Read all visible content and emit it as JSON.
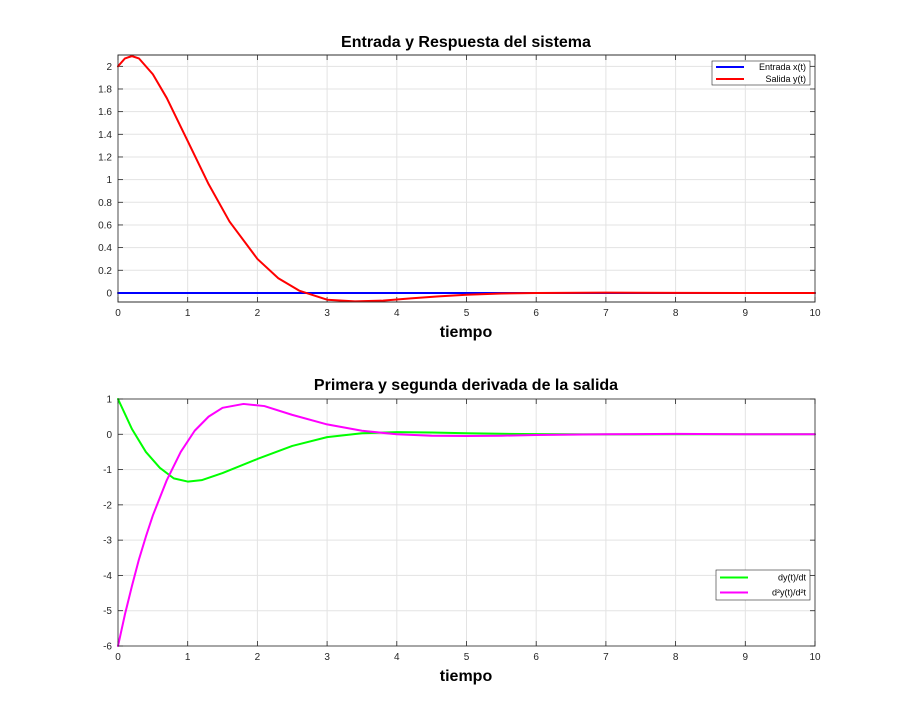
{
  "chart_data": [
    {
      "type": "line",
      "title": "Entrada y Respuesta del sistema",
      "xlabel": "tiempo",
      "ylabel": "",
      "xlim": [
        0,
        10
      ],
      "ylim": [
        -0.08,
        2.1
      ],
      "xticks": [
        "0",
        "1",
        "2",
        "3",
        "4",
        "5",
        "6",
        "7",
        "8",
        "9",
        "10"
      ],
      "yticks": [
        "0",
        "0.2",
        "0.4",
        "0.6",
        "0.8",
        "1",
        "1.2",
        "1.4",
        "1.6",
        "1.8",
        "2"
      ],
      "grid": true,
      "legend_position": "top-right",
      "series": [
        {
          "name": "Entrada x(t)",
          "color": "#0000ff",
          "x": [
            0,
            10
          ],
          "y": [
            0,
            0
          ]
        },
        {
          "name": "Salida y(t)",
          "color": "#ff0000",
          "x": [
            0,
            0.1,
            0.2,
            0.3,
            0.5,
            0.7,
            1.0,
            1.3,
            1.6,
            2.0,
            2.3,
            2.6,
            3.0,
            3.4,
            3.8,
            4.2,
            4.6,
            5.0,
            5.5,
            6.0,
            7.0,
            8.0,
            9.0,
            10.0
          ],
          "y": [
            2.0,
            2.07,
            2.09,
            2.07,
            1.93,
            1.72,
            1.34,
            0.96,
            0.63,
            0.3,
            0.13,
            0.02,
            -0.06,
            -0.075,
            -0.068,
            -0.048,
            -0.03,
            -0.016,
            -0.005,
            0.0,
            0.003,
            0.001,
            0.0,
            0.0
          ]
        }
      ]
    },
    {
      "type": "line",
      "title": "Primera y segunda derivada de la salida",
      "xlabel": "tiempo",
      "ylabel": "",
      "xlim": [
        0,
        10
      ],
      "ylim": [
        -6,
        1
      ],
      "xticks": [
        "0",
        "1",
        "2",
        "3",
        "4",
        "5",
        "6",
        "7",
        "8",
        "9",
        "10"
      ],
      "yticks": [
        "-6",
        "-5",
        "-4",
        "-3",
        "-2",
        "-1",
        "0",
        "1"
      ],
      "grid": true,
      "legend_position": "bottom-right",
      "series": [
        {
          "name": "dy(t)/dt",
          "color": "#00ff00",
          "x": [
            0,
            0.2,
            0.4,
            0.6,
            0.8,
            1.0,
            1.2,
            1.5,
            2.0,
            2.5,
            3.0,
            3.5,
            4.0,
            4.5,
            5.0,
            5.5,
            6.0,
            7.0,
            8.0,
            9.0,
            10.0
          ],
          "y": [
            1.0,
            0.15,
            -0.5,
            -0.95,
            -1.25,
            -1.34,
            -1.3,
            -1.1,
            -0.7,
            -0.33,
            -0.08,
            0.03,
            0.06,
            0.05,
            0.03,
            0.015,
            0.005,
            -0.003,
            0.0,
            0.0,
            0.0
          ]
        },
        {
          "name": "d²y(t)/d²t",
          "color": "#ff00ff",
          "x": [
            0,
            0.1,
            0.2,
            0.3,
            0.4,
            0.5,
            0.7,
            0.9,
            1.1,
            1.3,
            1.5,
            1.8,
            2.1,
            2.5,
            3.0,
            3.5,
            4.0,
            4.5,
            5.0,
            5.5,
            6.0,
            7.0,
            8.0,
            9.0,
            10.0
          ],
          "y": [
            -6.0,
            -5.1,
            -4.3,
            -3.55,
            -2.9,
            -2.3,
            -1.3,
            -0.5,
            0.1,
            0.5,
            0.75,
            0.86,
            0.8,
            0.55,
            0.28,
            0.1,
            0.0,
            -0.04,
            -0.05,
            -0.04,
            -0.02,
            0.0,
            0.01,
            0.0,
            0.0
          ]
        }
      ]
    }
  ]
}
